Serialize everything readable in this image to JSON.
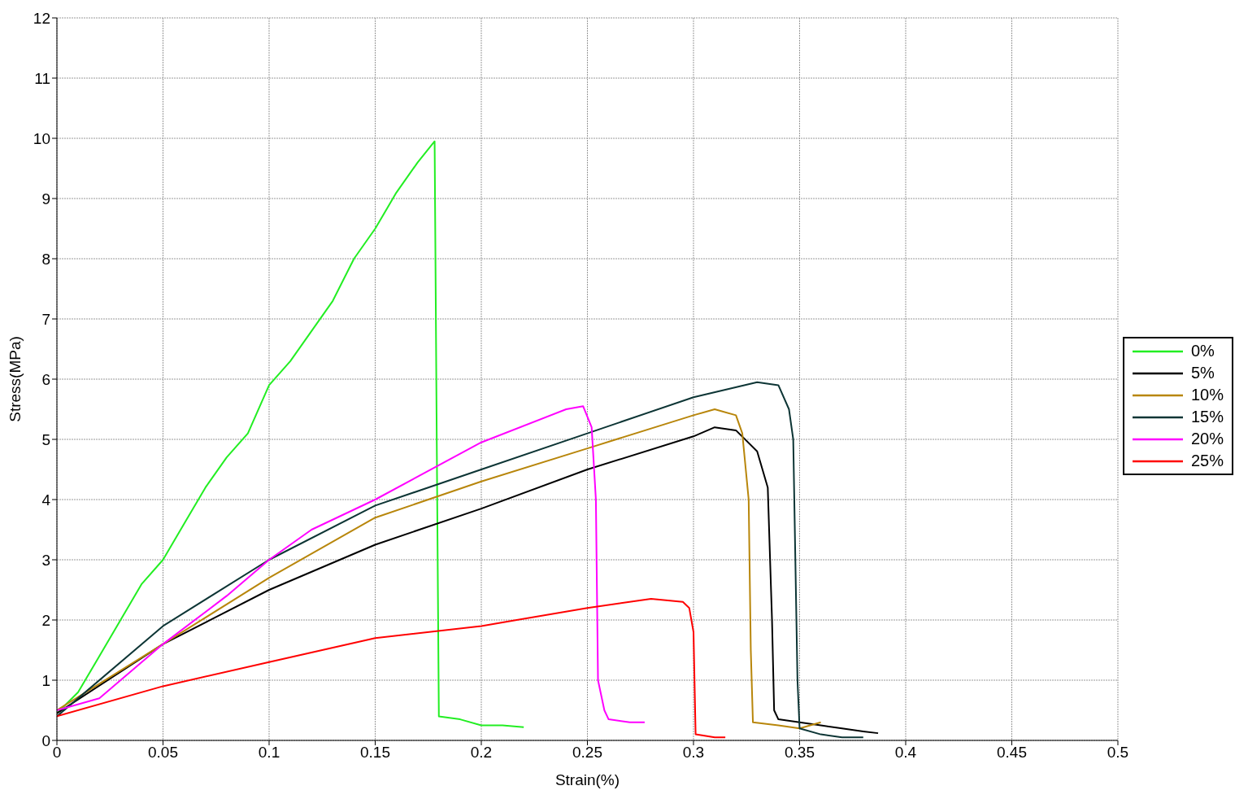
{
  "chart_data": {
    "type": "line",
    "xlabel": "Strain(%)",
    "ylabel": "Stress(MPa)",
    "xlim": [
      0,
      0.5
    ],
    "xticks": [
      0,
      0.05,
      0.1,
      0.15,
      0.2,
      0.25,
      0.3,
      0.35,
      0.4,
      0.45,
      0.5
    ],
    "ylim": [
      0,
      12
    ],
    "yticks": [
      0,
      1,
      2,
      3,
      4,
      5,
      6,
      7,
      8,
      9,
      10,
      11,
      12
    ],
    "grid": true,
    "legend": "right",
    "marker": "none",
    "line_style": "solid",
    "series": [
      {
        "name": "0%",
        "color": "#22ee22",
        "x": [
          0,
          0.01,
          0.02,
          0.03,
          0.04,
          0.05,
          0.06,
          0.07,
          0.08,
          0.09,
          0.1,
          0.11,
          0.12,
          0.13,
          0.14,
          0.15,
          0.16,
          0.17,
          0.178,
          0.179,
          0.18,
          0.19,
          0.2,
          0.21,
          0.22
        ],
        "values": [
          0.45,
          0.8,
          1.4,
          2.0,
          2.6,
          3.0,
          3.6,
          4.2,
          4.7,
          5.1,
          5.9,
          6.3,
          6.8,
          7.3,
          8.0,
          8.5,
          9.1,
          9.6,
          9.95,
          5.0,
          0.4,
          0.35,
          0.25,
          0.25,
          0.22
        ]
      },
      {
        "name": "5%",
        "color": "#000000",
        "x": [
          0,
          0.05,
          0.1,
          0.15,
          0.2,
          0.25,
          0.3,
          0.31,
          0.32,
          0.33,
          0.335,
          0.337,
          0.338,
          0.34,
          0.35,
          0.36,
          0.37,
          0.38,
          0.387
        ],
        "values": [
          0.45,
          1.6,
          2.5,
          3.25,
          3.85,
          4.5,
          5.05,
          5.2,
          5.15,
          4.8,
          4.2,
          2.0,
          0.5,
          0.35,
          0.3,
          0.25,
          0.2,
          0.15,
          0.12
        ]
      },
      {
        "name": "10%",
        "color": "#b8860b",
        "x": [
          0,
          0.05,
          0.1,
          0.15,
          0.2,
          0.25,
          0.3,
          0.31,
          0.32,
          0.323,
          0.326,
          0.327,
          0.328,
          0.34,
          0.35,
          0.36
        ],
        "values": [
          0.5,
          1.6,
          2.7,
          3.7,
          4.3,
          4.85,
          5.4,
          5.5,
          5.4,
          5.1,
          4.0,
          1.5,
          0.3,
          0.25,
          0.2,
          0.3
        ]
      },
      {
        "name": "15%",
        "color": "#0d3535",
        "x": [
          0,
          0.05,
          0.1,
          0.15,
          0.2,
          0.25,
          0.3,
          0.33,
          0.34,
          0.345,
          0.347,
          0.348,
          0.349,
          0.35,
          0.36,
          0.37,
          0.38
        ],
        "values": [
          0.4,
          1.9,
          3.0,
          3.9,
          4.5,
          5.1,
          5.7,
          5.95,
          5.9,
          5.5,
          5.0,
          3.0,
          1.0,
          0.2,
          0.1,
          0.05,
          0.05
        ]
      },
      {
        "name": "20%",
        "color": "#ff00ff",
        "x": [
          0,
          0.02,
          0.05,
          0.08,
          0.1,
          0.12,
          0.15,
          0.2,
          0.24,
          0.248,
          0.252,
          0.254,
          0.255,
          0.258,
          0.26,
          0.27,
          0.277
        ],
        "values": [
          0.5,
          0.7,
          1.6,
          2.4,
          3.0,
          3.5,
          4.0,
          4.95,
          5.5,
          5.55,
          5.2,
          4.0,
          1.0,
          0.5,
          0.35,
          0.3,
          0.3
        ]
      },
      {
        "name": "25%",
        "color": "#ff0000",
        "x": [
          0,
          0.05,
          0.1,
          0.15,
          0.2,
          0.25,
          0.28,
          0.295,
          0.298,
          0.3,
          0.301,
          0.31,
          0.315
        ],
        "values": [
          0.4,
          0.9,
          1.3,
          1.7,
          1.9,
          2.2,
          2.35,
          2.3,
          2.2,
          1.8,
          0.1,
          0.05,
          0.05
        ]
      }
    ]
  }
}
